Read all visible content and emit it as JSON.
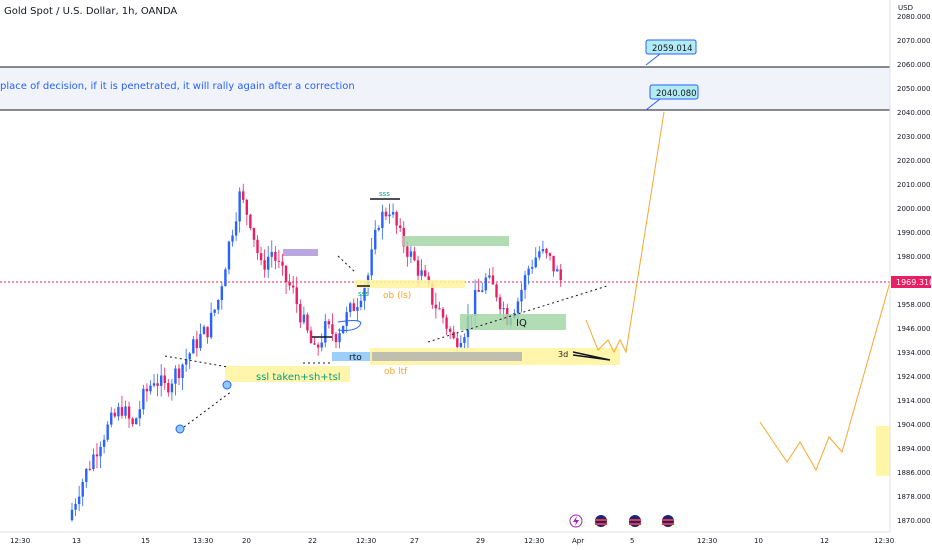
{
  "header": {
    "title": "Gold Spot / U.S. Dollar, 1h, OANDA"
  },
  "chart_data": {
    "type": "candlestick",
    "title": "Gold Spot / U.S. Dollar, 1h, OANDA",
    "currency_label": "USD",
    "y_ticks": [
      "2080.000",
      "2070.000",
      "2060.000",
      "2050.000",
      "2040.000",
      "2030.000",
      "2020.000",
      "2010.000",
      "2000.000",
      "1990.000",
      "1980.000",
      "1968.000",
      "1958.000",
      "1946.000",
      "1934.000",
      "1924.000",
      "1914.000",
      "1904.000",
      "1894.000",
      "1886.000",
      "1878.000",
      "1870.000"
    ],
    "x_ticks": [
      "12:30",
      "13",
      "15",
      "13:30",
      "20",
      "22",
      "12:30",
      "27",
      "29",
      "12:30",
      "Apr",
      "5",
      "12:30",
      "10",
      "12",
      "12:30"
    ],
    "current_price": "1969.310",
    "price_series": [
      1872,
      1885,
      1895,
      1905,
      1912,
      1918,
      1910,
      1922,
      1930,
      1926,
      1932,
      1938,
      1945,
      1950,
      1962,
      1985,
      2005,
      1995,
      1975,
      1982,
      1972,
      1965,
      1952,
      1940,
      1950,
      1948,
      1955,
      1962,
      1972,
      1995,
      2000,
      1988,
      1980,
      1972,
      1962,
      1955,
      1945,
      1950,
      1962,
      1970,
      1965,
      1955,
      1962,
      1975,
      1982,
      1978,
      1970
    ],
    "callouts": [
      "2059.014",
      "2040.080"
    ],
    "levels": [
      2059.014,
      2040.08,
      1969.31
    ],
    "annotations": {
      "decision_text": "place of decision, if it is penetrated, it will rally again after a correction",
      "sss_top": "sss",
      "sss_low": "sss",
      "ob_ls": "ob (ls)",
      "ssl": "ssl taken+sh+tsl",
      "rto": "rto",
      "ob_ltf": "ob ltf",
      "iq": "IQ",
      "three_d": "3d"
    },
    "colors": {
      "up": "#2962ff",
      "down": "#e91e63",
      "projection": "#f7a72d",
      "zone_yellow": "#fff59d",
      "zone_green": "#a5d6a7"
    },
    "event_icons": [
      "lightning-icon",
      "us-flag-icon",
      "us-flag-icon",
      "us-flag-icon"
    ]
  }
}
